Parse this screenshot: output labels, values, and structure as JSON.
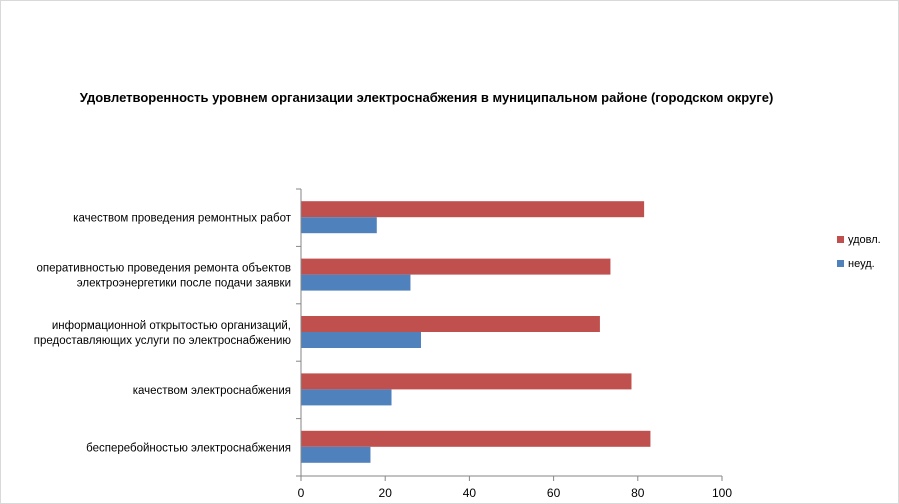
{
  "chart_data": {
    "type": "bar",
    "orientation": "horizontal",
    "title": "Удовлетворенность уровнем организации электроснабжения в муниципальном районе (городском округе)",
    "categories": [
      [
        "качеством проведения ремонтных работ"
      ],
      [
        "оперативностью проведения ремонта объектов",
        "электроэнергетики после подачи заявки"
      ],
      [
        "информационной открытостью организаций,",
        "предоставляющих услуги по электроснабжению"
      ],
      [
        "качеством электроснабжения"
      ],
      [
        "бесперебойностью электроснабжения"
      ]
    ],
    "series": [
      {
        "name": "удовл.",
        "color": "#c0504d",
        "values": [
          81.5,
          73.5,
          71,
          78.5,
          83
        ]
      },
      {
        "name": "неуд.",
        "color": "#4f81bd",
        "values": [
          18,
          26,
          28.5,
          21.5,
          16.5
        ]
      }
    ],
    "xlim": [
      0,
      100
    ],
    "xticks": [
      "0",
      "20",
      "40",
      "60",
      "80",
      "100"
    ],
    "xlabel": "",
    "ylabel": "",
    "grid": false,
    "legend_position": "right"
  }
}
